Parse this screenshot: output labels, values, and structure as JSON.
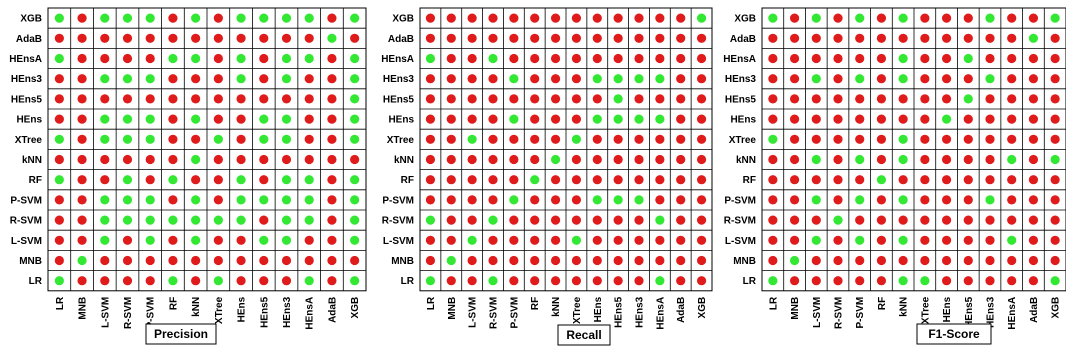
{
  "chart_data": [
    {
      "type": "heatmap",
      "title": "Precision",
      "categories": [
        "LR",
        "MNB",
        "L-SVM",
        "R-SVM",
        "P-SVM",
        "RF",
        "kNN",
        "XTree",
        "HEns",
        "HEns5",
        "HEns3",
        "HEnsA",
        "AdaB",
        "XGB"
      ],
      "rows": [
        "XGB",
        "AdaB",
        "HEnsA",
        "HEns3",
        "HEns5",
        "HEns",
        "XTree",
        "kNN",
        "RF",
        "P-SVM",
        "R-SVM",
        "L-SVM",
        "MNB",
        "LR"
      ],
      "values": [
        [
          1,
          0,
          1,
          1,
          1,
          0,
          1,
          0,
          1,
          1,
          1,
          1,
          0,
          1
        ],
        [
          0,
          0,
          0,
          0,
          0,
          0,
          0,
          0,
          0,
          0,
          0,
          0,
          1,
          0
        ],
        [
          1,
          0,
          0,
          0,
          0,
          1,
          1,
          0,
          1,
          0,
          1,
          1,
          0,
          1
        ],
        [
          0,
          0,
          1,
          1,
          1,
          0,
          0,
          0,
          1,
          0,
          1,
          0,
          0,
          1
        ],
        [
          0,
          0,
          0,
          0,
          0,
          0,
          0,
          0,
          0,
          0,
          0,
          0,
          0,
          1
        ],
        [
          0,
          0,
          1,
          1,
          1,
          0,
          1,
          0,
          0,
          1,
          1,
          0,
          0,
          1
        ],
        [
          1,
          0,
          1,
          1,
          1,
          0,
          0,
          1,
          0,
          1,
          1,
          0,
          0,
          1
        ],
        [
          0,
          0,
          0,
          0,
          0,
          0,
          1,
          0,
          0,
          0,
          0,
          0,
          0,
          0
        ],
        [
          1,
          0,
          0,
          1,
          0,
          1,
          0,
          0,
          1,
          0,
          1,
          1,
          0,
          1
        ],
        [
          0,
          0,
          1,
          1,
          1,
          0,
          1,
          0,
          1,
          1,
          1,
          1,
          0,
          1
        ],
        [
          0,
          0,
          1,
          1,
          1,
          1,
          1,
          1,
          1,
          0,
          1,
          1,
          0,
          1
        ],
        [
          0,
          0,
          1,
          0,
          1,
          0,
          1,
          0,
          0,
          1,
          1,
          0,
          0,
          1
        ],
        [
          0,
          1,
          0,
          0,
          0,
          0,
          0,
          0,
          0,
          0,
          0,
          0,
          0,
          0
        ],
        [
          1,
          0,
          0,
          0,
          0,
          1,
          0,
          1,
          0,
          0,
          0,
          1,
          0,
          1
        ]
      ]
    },
    {
      "type": "heatmap",
      "title": "Recall",
      "categories": [
        "LR",
        "MNB",
        "L-SVM",
        "R-SVM",
        "P-SVM",
        "RF",
        "kNN",
        "XTree",
        "HEns",
        "HEns5",
        "HEns3",
        "HEnsA",
        "AdaB",
        "XGB"
      ],
      "rows": [
        "XGB",
        "AdaB",
        "HEnsA",
        "HEns3",
        "HEns5",
        "HEns",
        "XTree",
        "kNN",
        "RF",
        "P-SVM",
        "R-SVM",
        "L-SVM",
        "MNB",
        "LR"
      ],
      "values": [
        [
          0,
          0,
          0,
          0,
          0,
          0,
          0,
          0,
          0,
          0,
          0,
          0,
          0,
          1
        ],
        [
          0,
          0,
          0,
          0,
          0,
          0,
          0,
          0,
          0,
          0,
          0,
          0,
          0,
          0
        ],
        [
          1,
          0,
          0,
          1,
          0,
          0,
          0,
          0,
          0,
          0,
          0,
          0,
          0,
          0
        ],
        [
          0,
          0,
          0,
          0,
          1,
          0,
          0,
          0,
          1,
          1,
          1,
          1,
          0,
          0
        ],
        [
          0,
          0,
          0,
          0,
          0,
          0,
          0,
          0,
          0,
          1,
          0,
          0,
          0,
          0
        ],
        [
          0,
          0,
          0,
          0,
          1,
          0,
          0,
          0,
          1,
          1,
          1,
          1,
          0,
          0
        ],
        [
          0,
          0,
          1,
          0,
          0,
          0,
          0,
          1,
          0,
          0,
          0,
          0,
          0,
          0
        ],
        [
          0,
          0,
          0,
          0,
          0,
          0,
          1,
          0,
          0,
          0,
          0,
          0,
          0,
          0
        ],
        [
          0,
          0,
          0,
          0,
          0,
          1,
          0,
          0,
          0,
          0,
          0,
          0,
          0,
          0
        ],
        [
          0,
          0,
          0,
          0,
          1,
          0,
          0,
          0,
          1,
          1,
          1,
          0,
          0,
          0
        ],
        [
          1,
          0,
          0,
          1,
          0,
          0,
          0,
          0,
          0,
          0,
          0,
          1,
          0,
          0
        ],
        [
          0,
          0,
          1,
          0,
          0,
          0,
          0,
          1,
          0,
          0,
          0,
          0,
          0,
          0
        ],
        [
          0,
          1,
          0,
          0,
          0,
          0,
          0,
          0,
          0,
          0,
          0,
          0,
          0,
          0
        ],
        [
          1,
          0,
          0,
          1,
          0,
          0,
          0,
          0,
          0,
          0,
          0,
          1,
          0,
          0
        ]
      ]
    },
    {
      "type": "heatmap",
      "title": "F1-Score",
      "categories": [
        "LR",
        "MNB",
        "L-SVM",
        "R-SVM",
        "P-SVM",
        "RF",
        "kNN",
        "XTree",
        "HEns",
        "HEns5",
        "HEns3",
        "HEnsA",
        "AdaB",
        "XGB"
      ],
      "rows": [
        "XGB",
        "AdaB",
        "HEnsA",
        "HEns3",
        "HEns5",
        "HEns",
        "XTree",
        "kNN",
        "RF",
        "P-SVM",
        "R-SVM",
        "L-SVM",
        "MNB",
        "LR"
      ],
      "values": [
        [
          1,
          0,
          1,
          0,
          1,
          0,
          1,
          0,
          0,
          0,
          1,
          0,
          0,
          1
        ],
        [
          0,
          0,
          0,
          0,
          0,
          0,
          0,
          0,
          0,
          0,
          0,
          0,
          1,
          0
        ],
        [
          0,
          0,
          0,
          0,
          0,
          0,
          1,
          0,
          0,
          1,
          0,
          0,
          0,
          0
        ],
        [
          0,
          0,
          1,
          0,
          1,
          0,
          1,
          0,
          0,
          0,
          1,
          0,
          0,
          0
        ],
        [
          0,
          0,
          0,
          0,
          0,
          0,
          0,
          0,
          0,
          1,
          0,
          0,
          0,
          0
        ],
        [
          0,
          0,
          0,
          0,
          0,
          0,
          0,
          0,
          1,
          0,
          0,
          0,
          0,
          0
        ],
        [
          1,
          0,
          0,
          0,
          0,
          0,
          1,
          0,
          0,
          0,
          0,
          0,
          0,
          0
        ],
        [
          0,
          0,
          1,
          0,
          1,
          0,
          1,
          0,
          0,
          0,
          0,
          1,
          0,
          1
        ],
        [
          0,
          0,
          0,
          0,
          0,
          1,
          0,
          0,
          0,
          0,
          0,
          0,
          0,
          0
        ],
        [
          0,
          0,
          1,
          0,
          1,
          0,
          1,
          0,
          0,
          0,
          1,
          0,
          0,
          0
        ],
        [
          0,
          0,
          0,
          1,
          0,
          0,
          0,
          0,
          0,
          0,
          0,
          0,
          0,
          0
        ],
        [
          0,
          0,
          1,
          0,
          1,
          0,
          1,
          0,
          0,
          0,
          0,
          1,
          0,
          0
        ],
        [
          0,
          1,
          0,
          0,
          0,
          0,
          0,
          0,
          0,
          0,
          0,
          0,
          0,
          0
        ],
        [
          1,
          0,
          0,
          0,
          0,
          0,
          1,
          1,
          0,
          0,
          0,
          0,
          0,
          1
        ]
      ]
    }
  ],
  "colors": {
    "green": "#33e833",
    "red": "#e01b1b"
  }
}
